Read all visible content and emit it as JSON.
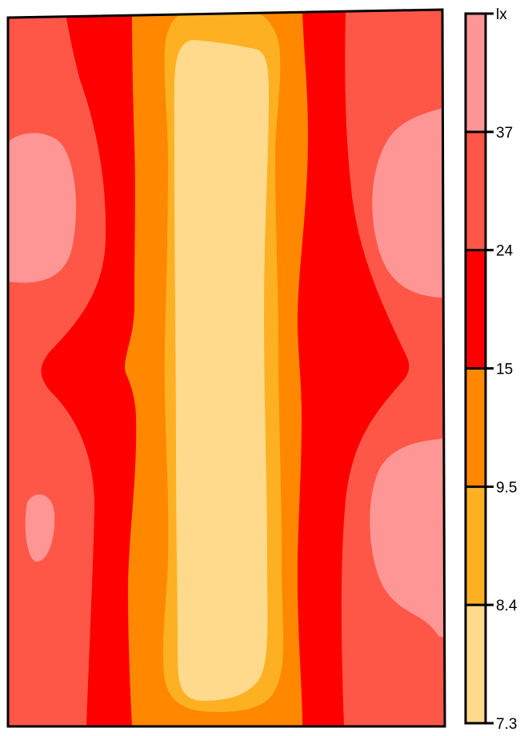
{
  "chart_data": {
    "type": "heatmap",
    "title": "",
    "unit": "lx",
    "colorbar": {
      "position": "right",
      "unit_label": "lx",
      "tick_labels": [
        "7.3",
        "8.4",
        "9.5",
        "15",
        "24",
        "37"
      ],
      "bands": [
        {
          "from": "7.3",
          "to": "8.4",
          "color": "#FFD98C"
        },
        {
          "from": "8.4",
          "to": "9.5",
          "color": "#FDB022"
        },
        {
          "from": "9.5",
          "to": "15",
          "color": "#FF8800"
        },
        {
          "from": "15",
          "to": "24",
          "color": "#FF0000"
        },
        {
          "from": "24",
          "to": "37",
          "color": "#FF5747"
        },
        {
          "from": "37",
          "to": "max",
          "color": "#FF9696"
        }
      ]
    },
    "pattern": "Illuminance contour map: lowest values (7.3–8.4 lx) in a vertical central strip, increasing symmetrically toward the left and right edges, with highest values (>37 lx) in lobes near the side walls."
  }
}
